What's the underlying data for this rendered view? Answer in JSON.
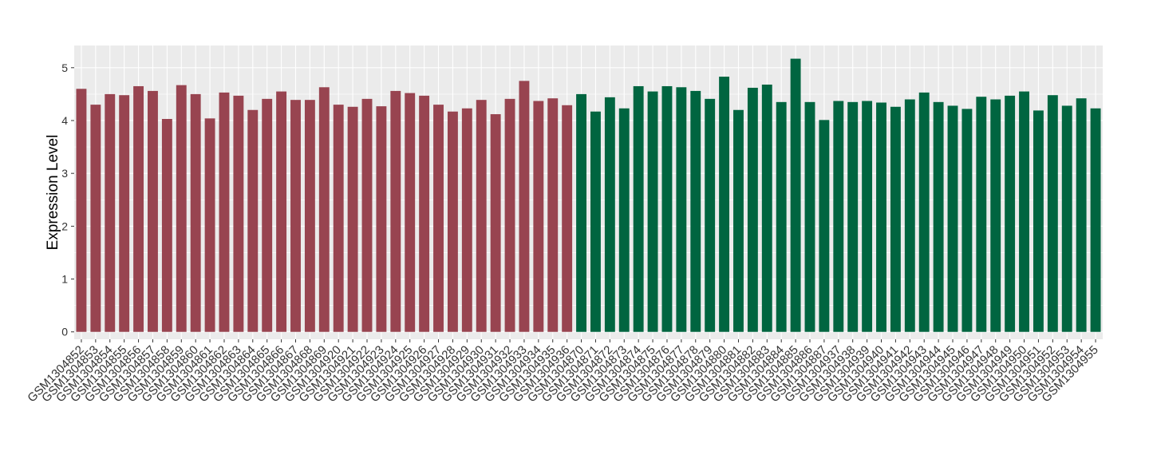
{
  "chart_data": {
    "type": "bar",
    "y_label": "Expression Level",
    "categories": [
      "GSM1304852",
      "GSM1304853",
      "GSM1304854",
      "GSM1304855",
      "GSM1304856",
      "GSM1304857",
      "GSM1304858",
      "GSM1304859",
      "GSM1304860",
      "GSM1304861",
      "GSM1304862",
      "GSM1304863",
      "GSM1304864",
      "GSM1304865",
      "GSM1304866",
      "GSM1304867",
      "GSM1304868",
      "GSM1304869",
      "GSM1304920",
      "GSM1304921",
      "GSM1304922",
      "GSM1304923",
      "GSM1304924",
      "GSM1304925",
      "GSM1304926",
      "GSM1304927",
      "GSM1304928",
      "GSM1304929",
      "GSM1304930",
      "GSM1304931",
      "GSM1304932",
      "GSM1304933",
      "GSM1304934",
      "GSM1304935",
      "GSM1304936",
      "GSM1304870",
      "GSM1304871",
      "GSM1304872",
      "GSM1304873",
      "GSM1304874",
      "GSM1304875",
      "GSM1304876",
      "GSM1304877",
      "GSM1304878",
      "GSM1304879",
      "GSM1304880",
      "GSM1304881",
      "GSM1304882",
      "GSM1304883",
      "GSM1304884",
      "GSM1304885",
      "GSM1304886",
      "GSM1304887",
      "GSM1304937",
      "GSM1304938",
      "GSM1304939",
      "GSM1304940",
      "GSM1304941",
      "GSM1304942",
      "GSM1304943",
      "GSM1304944",
      "GSM1304945",
      "GSM1304946",
      "GSM1304947",
      "GSM1304948",
      "GSM1304949",
      "GSM1304950",
      "GSM1304951",
      "GSM1304952",
      "GSM1304953",
      "GSM1304954",
      "GSM1304955"
    ],
    "values": [
      4.6,
      4.3,
      4.5,
      4.48,
      4.65,
      4.56,
      4.03,
      4.67,
      4.5,
      4.04,
      4.53,
      4.47,
      4.2,
      4.41,
      4.55,
      4.39,
      4.39,
      4.63,
      4.3,
      4.26,
      4.41,
      4.27,
      4.56,
      4.52,
      4.47,
      4.3,
      4.17,
      4.23,
      4.39,
      4.12,
      4.41,
      4.75,
      4.37,
      4.42,
      4.29,
      4.5,
      4.17,
      4.44,
      4.23,
      4.65,
      4.55,
      4.65,
      4.63,
      4.56,
      4.41,
      4.83,
      4.2,
      4.62,
      4.68,
      4.35,
      5.17,
      4.35,
      4.01,
      4.37,
      4.35,
      4.37,
      4.34,
      4.26,
      4.4,
      4.53,
      4.35,
      4.28,
      4.22,
      4.45,
      4.4,
      4.47,
      4.55,
      4.19,
      4.48,
      4.28,
      4.42,
      4.23
    ],
    "colors": [
      "#984450",
      "#984450",
      "#984450",
      "#984450",
      "#984450",
      "#984450",
      "#984450",
      "#984450",
      "#984450",
      "#984450",
      "#984450",
      "#984450",
      "#984450",
      "#984450",
      "#984450",
      "#984450",
      "#984450",
      "#984450",
      "#984450",
      "#984450",
      "#984450",
      "#984450",
      "#984450",
      "#984450",
      "#984450",
      "#984450",
      "#984450",
      "#984450",
      "#984450",
      "#984450",
      "#984450",
      "#984450",
      "#984450",
      "#984450",
      "#984450",
      "#006540",
      "#006540",
      "#006540",
      "#006540",
      "#006540",
      "#006540",
      "#006540",
      "#006540",
      "#006540",
      "#006540",
      "#006540",
      "#006540",
      "#006540",
      "#006540",
      "#006540",
      "#006540",
      "#006540",
      "#006540",
      "#006540",
      "#006540",
      "#006540",
      "#006540",
      "#006540",
      "#006540",
      "#006540",
      "#006540",
      "#006540",
      "#006540",
      "#006540",
      "#006540",
      "#006540",
      "#006540",
      "#006540",
      "#006540",
      "#006540",
      "#006540",
      "#006540"
    ],
    "ylim": [
      -0.14,
      5.42
    ],
    "yticks": [
      0,
      1,
      2,
      3,
      4,
      5
    ],
    "grid": true
  }
}
